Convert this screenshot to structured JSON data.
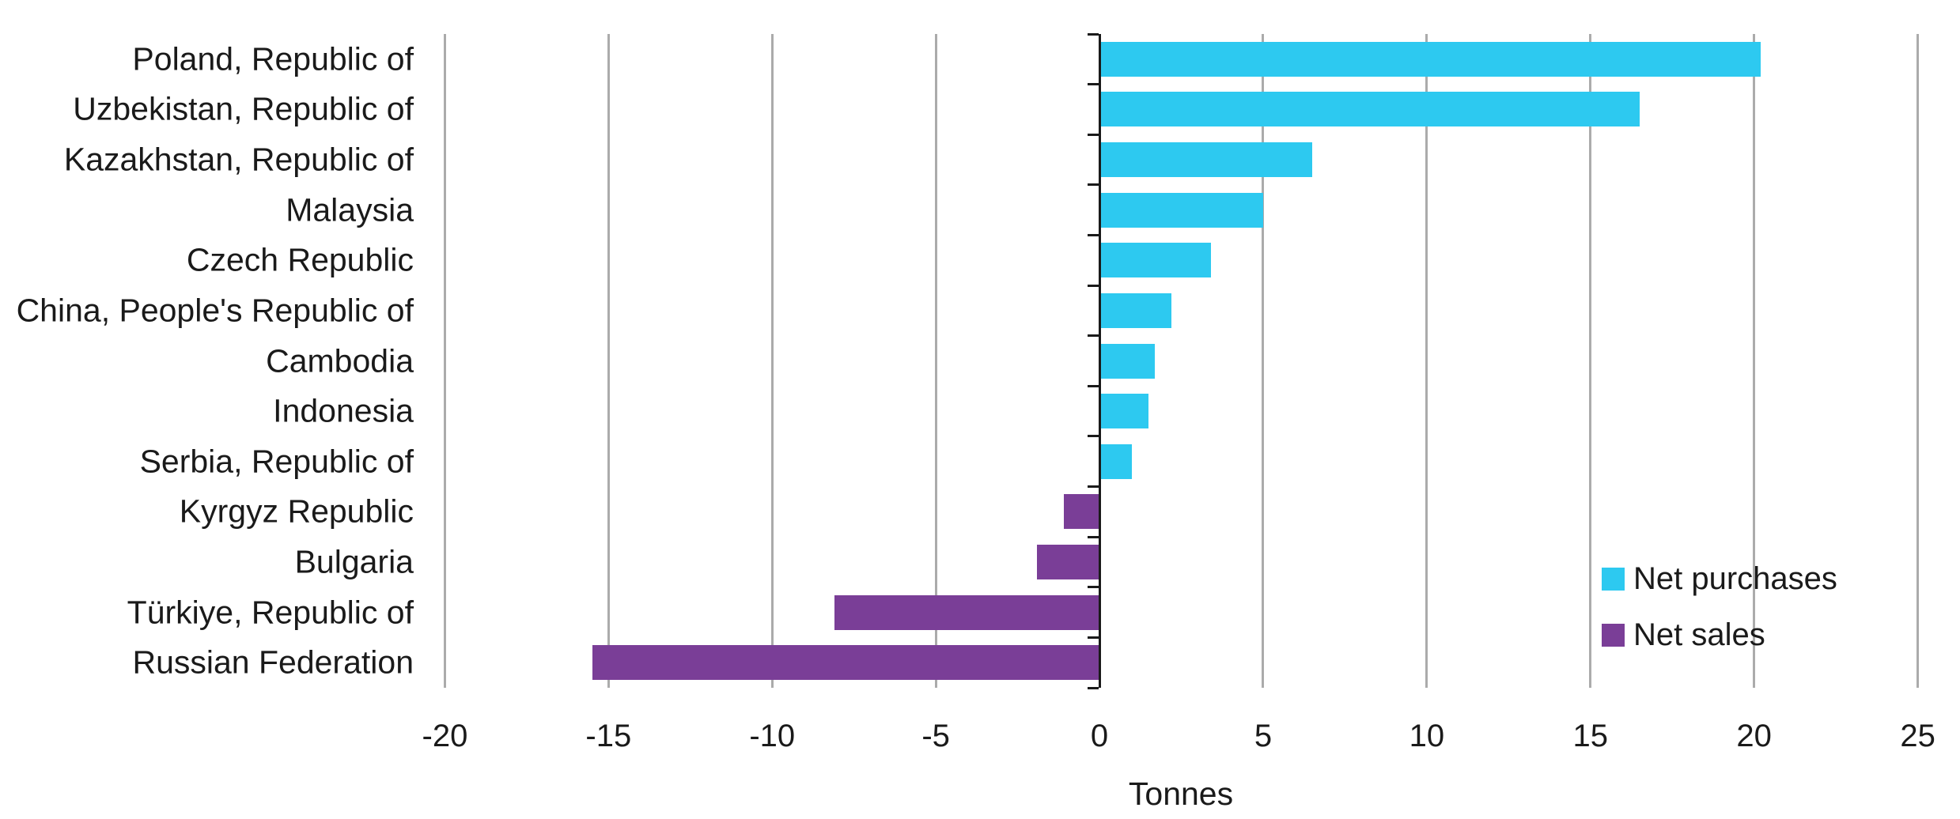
{
  "colors": {
    "bar_positive": "#2DC9F0",
    "bar_negative": "#7A3E97",
    "gridline": "#ABABAB",
    "axis": "#1A1A1A",
    "text": "#1A1A1A",
    "background": "#FFFFFF"
  },
  "chart_data": {
    "type": "bar",
    "orientation": "horizontal",
    "title": "",
    "xlabel": "Tonnes",
    "ylabel": "",
    "categories": [
      "Poland, Republic of",
      "Uzbekistan, Republic of",
      "Kazakhstan, Republic of",
      "Malaysia",
      "Czech Republic",
      "China, People's Republic of",
      "Cambodia",
      "Indonesia",
      "Serbia, Republic of",
      "Kyrgyz Republic",
      "Bulgaria",
      "Türkiye, Republic of",
      "Russian Federation"
    ],
    "values": [
      20.2,
      16.5,
      6.5,
      5.0,
      3.4,
      2.2,
      1.7,
      1.5,
      1.0,
      -1.1,
      -1.9,
      -8.1,
      -15.5
    ],
    "x_ticks": [
      -20,
      -15,
      -10,
      -5,
      0,
      5,
      10,
      15,
      20,
      25
    ],
    "xlim": [
      -20.3,
      25.3
    ],
    "grid": true,
    "legend_position": "inside-right",
    "legend": [
      {
        "label": "Net purchases",
        "color": "#2DC9F0"
      },
      {
        "label": "Net sales",
        "color": "#7A3E97"
      }
    ]
  }
}
